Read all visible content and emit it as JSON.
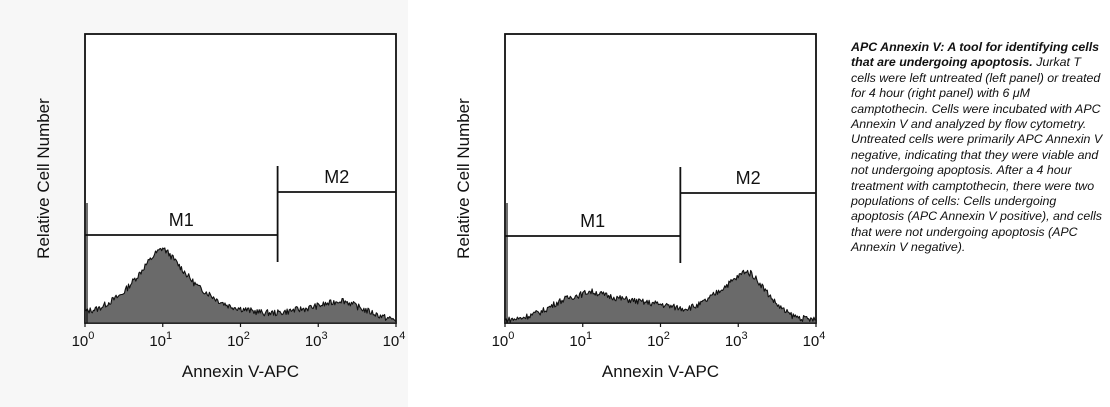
{
  "chart_data": [
    {
      "type": "area",
      "panel": "left",
      "xlabel": "Annexin V-APC",
      "ylabel": "Relative Cell Number",
      "xscale": "log",
      "xlim": [
        1,
        10000
      ],
      "ylim": [
        0,
        1
      ],
      "xticks": [
        {
          "base": "10",
          "exp": "0",
          "value": 1
        },
        {
          "base": "10",
          "exp": "1",
          "value": 10
        },
        {
          "base": "10",
          "exp": "2",
          "value": 100
        },
        {
          "base": "10",
          "exp": "3",
          "value": 1000
        },
        {
          "base": "10",
          "exp": "4",
          "value": 10000
        }
      ],
      "histogram": {
        "x": [
          1,
          1.5,
          2,
          3,
          4,
          5,
          6,
          7,
          8,
          9,
          10,
          12,
          15,
          20,
          25,
          30,
          40,
          50,
          70,
          100,
          150,
          200,
          300,
          400,
          500,
          700,
          1000,
          1500,
          2000,
          2500,
          3000,
          4000,
          5000,
          7000,
          10000
        ],
        "y": [
          0.04,
          0.05,
          0.07,
          0.1,
          0.14,
          0.17,
          0.2,
          0.22,
          0.24,
          0.25,
          0.26,
          0.24,
          0.21,
          0.17,
          0.14,
          0.12,
          0.1,
          0.08,
          0.06,
          0.05,
          0.04,
          0.035,
          0.035,
          0.04,
          0.045,
          0.05,
          0.06,
          0.07,
          0.08,
          0.07,
          0.06,
          0.045,
          0.035,
          0.02,
          0.01
        ]
      },
      "markers": [
        {
          "label": "M1",
          "range": [
            1,
            300
          ]
        },
        {
          "label": "M2",
          "range": [
            300,
            10000
          ]
        }
      ]
    },
    {
      "type": "area",
      "panel": "right",
      "xlabel": "Annexin V-APC",
      "ylabel": "Relative Cell Number",
      "xscale": "log",
      "xlim": [
        1,
        10000
      ],
      "ylim": [
        0,
        1
      ],
      "xticks": [
        {
          "base": "10",
          "exp": "0",
          "value": 1
        },
        {
          "base": "10",
          "exp": "1",
          "value": 10
        },
        {
          "base": "10",
          "exp": "2",
          "value": 100
        },
        {
          "base": "10",
          "exp": "3",
          "value": 1000
        },
        {
          "base": "10",
          "exp": "4",
          "value": 10000
        }
      ],
      "histogram": {
        "x": [
          1,
          1.5,
          2,
          3,
          4,
          5,
          7,
          10,
          12,
          15,
          20,
          30,
          40,
          50,
          70,
          100,
          150,
          200,
          300,
          400,
          500,
          700,
          1000,
          1200,
          1500,
          2000,
          3000,
          4000,
          5000,
          7000,
          10000
        ],
        "y": [
          0.01,
          0.015,
          0.025,
          0.04,
          0.06,
          0.075,
          0.09,
          0.1,
          0.11,
          0.105,
          0.095,
          0.085,
          0.08,
          0.075,
          0.07,
          0.065,
          0.055,
          0.05,
          0.06,
          0.08,
          0.1,
          0.13,
          0.16,
          0.18,
          0.17,
          0.13,
          0.07,
          0.04,
          0.025,
          0.015,
          0.01
        ]
      },
      "markers": [
        {
          "label": "M1",
          "range": [
            1,
            180
          ]
        },
        {
          "label": "M2",
          "range": [
            180,
            10000
          ]
        }
      ]
    }
  ],
  "colors": {
    "fill": "#6a6a6a",
    "stroke": "#111111",
    "left_panel_bg": "#f7f7f7"
  },
  "caption": {
    "title": "APC Annexin V: A tool for identifying cells that are undergoing apoptosis.",
    "body": "Jurkat T cells were left untreated (left panel) or treated for 4 hour (right panel) with 6 μM camptothecin. Cells were incubated with APC Annexin V and analyzed by flow cytometry. Untreated cells were primarily APC Annexin V negative, indicating that they were viable and not undergoing apoptosis. After a 4 hour treatment with camptothecin, there were two populations of cells: Cells undergoing apoptosis (APC Annexin V positive), and cells that were not undergoing apoptosis (APC Annexin V negative)."
  }
}
